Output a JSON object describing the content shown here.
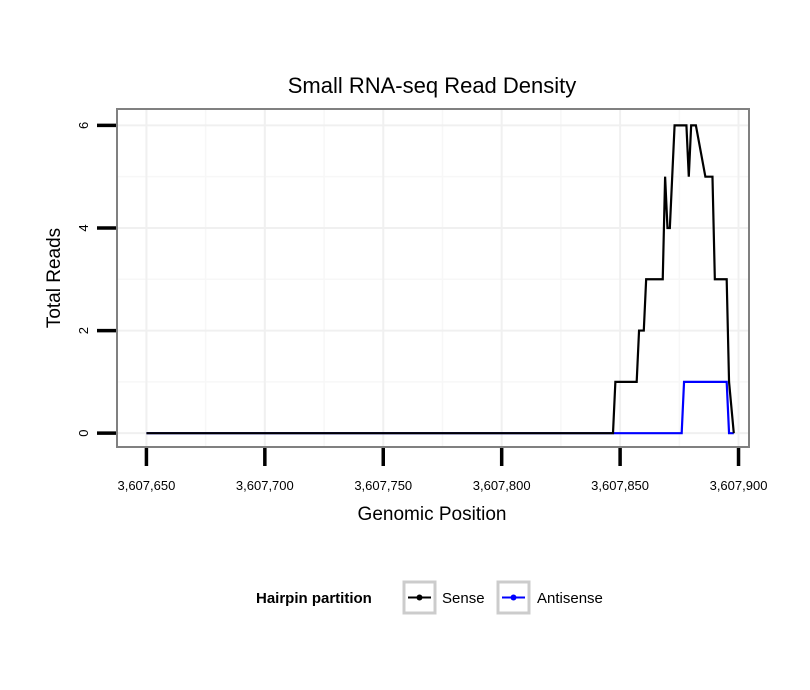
{
  "chart_data": {
    "type": "line",
    "title": "Small RNA-seq Read Density",
    "xlabel": "Genomic Position",
    "ylabel": "Total Reads",
    "xlim": [
      3607638,
      3607904
    ],
    "ylim": [
      -0.25,
      6.3
    ],
    "x_ticks": [
      3607650,
      3607700,
      3607750,
      3607800,
      3607850,
      3607900
    ],
    "x_tick_labels": [
      "3,607,650",
      "3,607,700",
      "3,607,750",
      "3,607,800",
      "3,607,850",
      "3,607,900"
    ],
    "y_ticks": [
      0,
      2,
      4,
      6
    ],
    "y_tick_labels": [
      "0",
      "2",
      "4",
      "6"
    ],
    "grid": true,
    "legend": {
      "title": "Hairpin partition",
      "position": "bottom"
    },
    "series": [
      {
        "name": "Sense",
        "color": "#000000",
        "x": [
          3607650,
          3607847,
          3607848,
          3607857,
          3607858,
          3607860,
          3607861,
          3607868,
          3607869,
          3607870,
          3607871,
          3607873,
          3607874,
          3607877,
          3607878,
          3607879,
          3607880,
          3607881,
          3607882,
          3607886,
          3607887,
          3607889,
          3607890,
          3607892,
          3607893,
          3607895,
          3607896,
          3607898
        ],
        "values": [
          0,
          0,
          1,
          1,
          2,
          2,
          3,
          3,
          5,
          4,
          4,
          6,
          6,
          6,
          6,
          5,
          6,
          6,
          6,
          5,
          5,
          5,
          3,
          3,
          3,
          3,
          1,
          0
        ]
      },
      {
        "name": "Antisense",
        "color": "#0000ff",
        "x": [
          3607650,
          3607876,
          3607877,
          3607895,
          3607896,
          3607898
        ],
        "values": [
          0,
          0,
          1,
          1,
          0,
          0
        ]
      }
    ]
  }
}
